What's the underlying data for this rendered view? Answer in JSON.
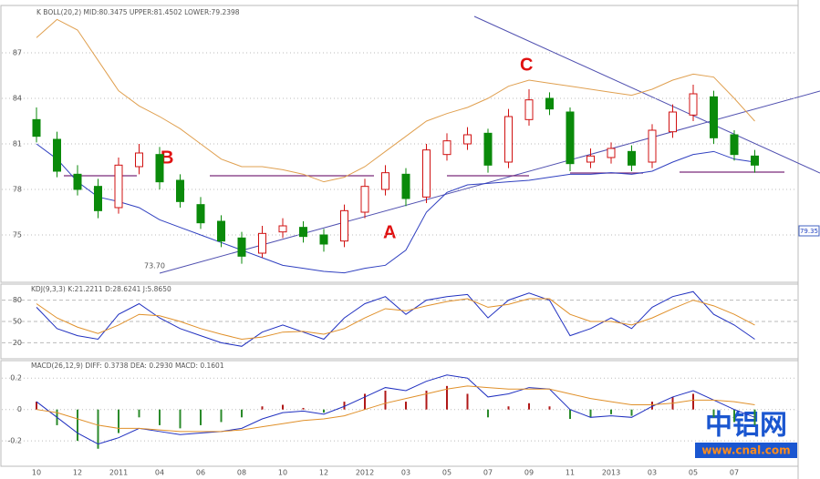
{
  "chart_data": [
    {
      "type": "candlestick",
      "title": "K BOLL(20,2) MID:80.3475 UPPER:81.4502 LOWER:79.2398",
      "categories": [
        "10",
        null,
        "12",
        null,
        "2011",
        null,
        "04",
        null,
        "06",
        null,
        "08",
        null,
        "10",
        null,
        "12",
        null,
        "2012",
        null,
        "03",
        null,
        "05",
        null,
        "07",
        null,
        "09",
        null,
        "11",
        null,
        "2013",
        null,
        "03",
        null,
        "05",
        null,
        "07",
        null
      ],
      "open": [
        82.6,
        81.3,
        79.0,
        78.2,
        76.8,
        79.5,
        80.3,
        78.6,
        77.0,
        75.9,
        74.8,
        73.8,
        75.2,
        75.5,
        75.0,
        74.6,
        76.5,
        78.0,
        79.0,
        77.5,
        80.3,
        81.0,
        81.7,
        79.8,
        82.6,
        84.0,
        83.1,
        79.8,
        80.1,
        80.5,
        79.8,
        81.8,
        82.9,
        84.1,
        81.6,
        80.2
      ],
      "high": [
        83.4,
        81.8,
        79.6,
        78.7,
        80.1,
        81.0,
        80.8,
        79.0,
        77.5,
        76.3,
        75.2,
        75.6,
        76.1,
        75.9,
        75.4,
        77.0,
        78.7,
        79.6,
        79.4,
        81.0,
        81.7,
        82.1,
        82.0,
        83.3,
        84.6,
        84.4,
        83.4,
        80.7,
        81.1,
        80.9,
        82.3,
        83.6,
        84.9,
        84.5,
        81.9,
        80.6
      ],
      "low": [
        81.1,
        78.8,
        77.6,
        76.1,
        76.4,
        79.0,
        78.0,
        76.8,
        75.4,
        74.2,
        73.1,
        73.5,
        74.8,
        74.5,
        73.9,
        74.2,
        76.1,
        77.6,
        76.9,
        77.1,
        79.9,
        80.6,
        79.1,
        79.4,
        82.2,
        82.9,
        79.2,
        79.4,
        79.7,
        79.2,
        79.4,
        81.4,
        82.5,
        81.0,
        79.9,
        79.1
      ],
      "close": [
        81.5,
        79.2,
        78.0,
        76.6,
        79.6,
        80.4,
        78.5,
        77.2,
        75.8,
        74.6,
        73.6,
        75.1,
        75.6,
        74.9,
        74.4,
        76.6,
        78.2,
        79.1,
        77.4,
        80.6,
        81.2,
        81.6,
        79.6,
        82.8,
        83.9,
        83.3,
        79.7,
        80.2,
        80.7,
        79.6,
        81.9,
        83.1,
        84.3,
        81.4,
        80.3,
        79.6
      ],
      "up_color": "#d01010",
      "down_color": "#0a8a0a",
      "series": [
        {
          "color": "#e0a050",
          "values": [
            88.0,
            89.2,
            88.5,
            86.5,
            84.5,
            83.5,
            82.8,
            82.0,
            81.0,
            80.0,
            79.5,
            79.5,
            79.3,
            79.0,
            78.5,
            78.8,
            79.5,
            80.5,
            81.5,
            82.5,
            83.0,
            83.4,
            84.0,
            84.8,
            85.2,
            85.0,
            84.8,
            84.6,
            84.4,
            84.2,
            84.6,
            85.2,
            85.6,
            85.4,
            84.0,
            82.5
          ]
        },
        {
          "color": "#3040c0",
          "values": [
            81.0,
            80.0,
            78.5,
            77.5,
            77.2,
            76.8,
            76.0,
            75.5,
            75.0,
            74.5,
            74.0,
            73.5,
            73.0,
            72.8,
            72.6,
            72.5,
            72.8,
            73.0,
            74.0,
            76.5,
            77.8,
            78.3,
            78.4,
            78.5,
            78.6,
            78.8,
            79.0,
            79.0,
            79.1,
            79.0,
            79.2,
            79.8,
            80.3,
            80.5,
            80.0,
            79.8
          ]
        }
      ],
      "ylim": [
        72,
        90
      ],
      "yticks": [
        75,
        78,
        81,
        84,
        87
      ],
      "annotations": [
        "A",
        "B",
        "C"
      ],
      "low_label": "73.70",
      "price_tag": "79.35"
    },
    {
      "type": "line",
      "title": "KDJ(9,3,3) K:21.2211 D:28.6241 J:5.8650",
      "series": [
        {
          "color": "#2030c0",
          "values": [
            70,
            40,
            30,
            25,
            60,
            75,
            55,
            40,
            30,
            20,
            15,
            35,
            45,
            35,
            25,
            55,
            75,
            85,
            60,
            80,
            85,
            88,
            55,
            80,
            90,
            80,
            30,
            40,
            55,
            40,
            70,
            85,
            92,
            60,
            45,
            25
          ]
        },
        {
          "color": "#e0902a",
          "values": [
            75,
            55,
            42,
            33,
            45,
            60,
            58,
            50,
            40,
            32,
            25,
            28,
            35,
            36,
            32,
            40,
            55,
            68,
            65,
            72,
            78,
            82,
            70,
            74,
            82,
            82,
            60,
            50,
            50,
            45,
            55,
            68,
            80,
            72,
            60,
            45
          ]
        }
      ],
      "ylim": [
        0,
        100
      ],
      "yticks": [
        20,
        50,
        80
      ]
    },
    {
      "type": "macd",
      "title": "MACD(26,12,9) DIFF: 0.3738 DEA: 0.2930 MACD: 0.1601",
      "values": [
        0.05,
        -0.1,
        -0.2,
        -0.25,
        -0.15,
        -0.05,
        -0.1,
        -0.12,
        -0.1,
        -0.08,
        -0.05,
        0.02,
        0.03,
        0.01,
        -0.02,
        0.05,
        0.1,
        0.12,
        0.05,
        0.12,
        0.15,
        0.1,
        -0.05,
        0.02,
        0.04,
        0.02,
        -0.06,
        -0.05,
        -0.03,
        -0.04,
        0.05,
        0.08,
        0.1,
        -0.05,
        -0.08,
        -0.1
      ],
      "up_color": "#b01818",
      "down_color": "#2a8a2a",
      "series": [
        {
          "color": "#2030c0",
          "values": [
            0.05,
            -0.05,
            -0.15,
            -0.22,
            -0.18,
            -0.12,
            -0.14,
            -0.16,
            -0.15,
            -0.14,
            -0.12,
            -0.06,
            -0.02,
            -0.01,
            -0.03,
            0.02,
            0.08,
            0.14,
            0.12,
            0.18,
            0.22,
            0.2,
            0.08,
            0.1,
            0.14,
            0.13,
            0.0,
            -0.05,
            -0.04,
            -0.05,
            0.02,
            0.08,
            0.12,
            0.06,
            0.0,
            -0.05
          ]
        },
        {
          "color": "#e0902a",
          "values": [
            0.0,
            -0.02,
            -0.06,
            -0.1,
            -0.12,
            -0.12,
            -0.13,
            -0.14,
            -0.14,
            -0.14,
            -0.13,
            -0.11,
            -0.09,
            -0.07,
            -0.06,
            -0.04,
            0.0,
            0.04,
            0.07,
            0.1,
            0.13,
            0.15,
            0.14,
            0.13,
            0.13,
            0.13,
            0.1,
            0.07,
            0.05,
            0.03,
            0.03,
            0.04,
            0.06,
            0.06,
            0.05,
            0.03
          ]
        }
      ],
      "ylim": [
        -0.35,
        0.3
      ],
      "yticks": [
        -0.2,
        0,
        0.2
      ]
    }
  ],
  "watermark": {
    "name": "中铝网",
    "url": "www.cnal.com"
  }
}
